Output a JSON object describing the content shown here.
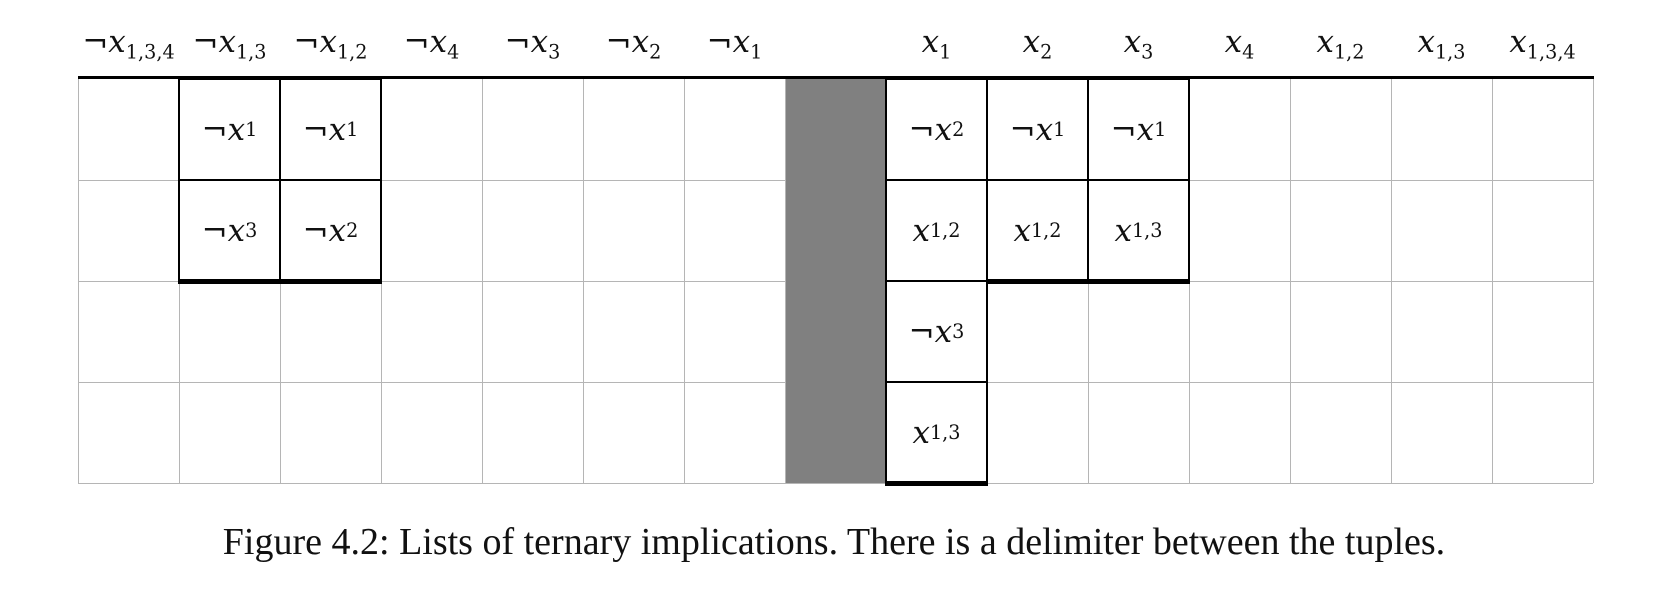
{
  "headers": [
    {
      "neg": true,
      "base": "x",
      "sub": "1,3,4"
    },
    {
      "neg": true,
      "base": "x",
      "sub": "1,3"
    },
    {
      "neg": true,
      "base": "x",
      "sub": "1,2"
    },
    {
      "neg": true,
      "base": "x",
      "sub": "4"
    },
    {
      "neg": true,
      "base": "x",
      "sub": "3"
    },
    {
      "neg": true,
      "base": "x",
      "sub": "2"
    },
    {
      "neg": true,
      "base": "x",
      "sub": "1"
    },
    null,
    {
      "neg": false,
      "base": "x",
      "sub": "1"
    },
    {
      "neg": false,
      "base": "x",
      "sub": "2"
    },
    {
      "neg": false,
      "base": "x",
      "sub": "3"
    },
    {
      "neg": false,
      "base": "x",
      "sub": "4"
    },
    {
      "neg": false,
      "base": "x",
      "sub": "1,2"
    },
    {
      "neg": false,
      "base": "x",
      "sub": "1,3"
    },
    {
      "neg": false,
      "base": "x",
      "sub": "1,3,4"
    }
  ],
  "rows": 4,
  "delimiter_column": 7,
  "columns": [
    {
      "col": 1,
      "items": [
        {
          "neg": true,
          "sub": "1"
        },
        {
          "neg": true,
          "sub": "3"
        }
      ]
    },
    {
      "col": 2,
      "items": [
        {
          "neg": true,
          "sub": "1"
        },
        {
          "neg": true,
          "sub": "2"
        }
      ]
    },
    {
      "col": 8,
      "items": [
        {
          "neg": true,
          "sub": "2"
        },
        {
          "neg": false,
          "sub": "1,2"
        },
        {
          "neg": true,
          "sub": "3"
        },
        {
          "neg": false,
          "sub": "1,3"
        }
      ]
    },
    {
      "col": 9,
      "items": [
        {
          "neg": true,
          "sub": "1"
        },
        {
          "neg": false,
          "sub": "1,2"
        }
      ]
    },
    {
      "col": 10,
      "items": [
        {
          "neg": true,
          "sub": "1"
        },
        {
          "neg": false,
          "sub": "1,3"
        }
      ]
    }
  ],
  "caption": "Figure 4.2: Lists of ternary implications. There is a delimiter between the tuples."
}
